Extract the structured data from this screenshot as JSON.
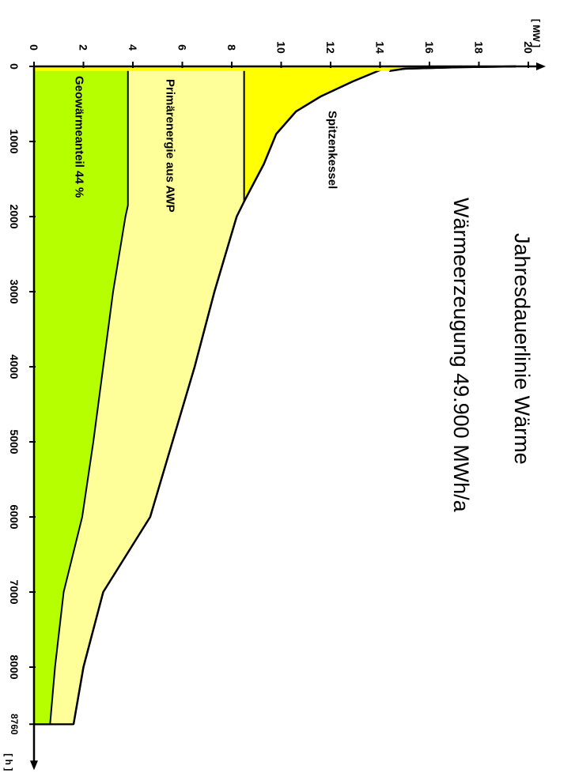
{
  "chart_data": {
    "type": "area",
    "title": "Jahresdauerlinie Wärme",
    "subtitle": "Wärmeerzeugung  49.900 MWh/a",
    "x_unit": "[ h ]",
    "y_unit": "[ MW ]",
    "xlim": [
      0,
      8760
    ],
    "ylim": [
      0,
      20
    ],
    "x_ticks": [
      "0",
      "1000",
      "2000",
      "3000",
      "4000",
      "5000",
      "6000",
      "7000",
      "8000",
      "8760"
    ],
    "x_tick_values": [
      0,
      1000,
      2000,
      3000,
      4000,
      5000,
      6000,
      7000,
      8000,
      8760
    ],
    "y_ticks": [
      "0",
      "2",
      "4",
      "6",
      "8",
      "10",
      "12",
      "14",
      "16",
      "18",
      "20"
    ],
    "y_tick_values": [
      0,
      2,
      4,
      6,
      8,
      10,
      12,
      14,
      16,
      18,
      20
    ],
    "grid": false,
    "series": [
      {
        "name": "Geowärmeanteil  44 %",
        "color": "#b5ff00",
        "points": [
          [
            0,
            3.8
          ],
          [
            1850,
            3.8
          ],
          [
            2000,
            3.7
          ],
          [
            3000,
            3.2
          ],
          [
            4000,
            2.8
          ],
          [
            5000,
            2.4
          ],
          [
            6000,
            1.95
          ],
          [
            7000,
            1.2
          ],
          [
            8000,
            0.85
          ],
          [
            8760,
            0.65
          ]
        ]
      },
      {
        "name": "Primärenergie aus  AWP",
        "color": "#ffff99",
        "points": [
          [
            0,
            8.5
          ],
          [
            1800,
            8.5
          ],
          [
            2000,
            8.2
          ],
          [
            3000,
            7.3
          ],
          [
            4000,
            6.5
          ],
          [
            5000,
            5.6
          ],
          [
            6000,
            4.7
          ],
          [
            7000,
            2.8
          ],
          [
            8000,
            2.0
          ],
          [
            8760,
            1.6
          ]
        ]
      },
      {
        "name": "Spitzenkessel",
        "color": "#ffff00",
        "points": [
          [
            0,
            14.4
          ],
          [
            50,
            14.0
          ],
          [
            200,
            12.9
          ],
          [
            400,
            11.6
          ],
          [
            600,
            10.6
          ],
          [
            900,
            9.8
          ],
          [
            1300,
            9.3
          ],
          [
            1800,
            8.5
          ],
          [
            2000,
            8.2
          ],
          [
            3000,
            7.3
          ],
          [
            4000,
            6.5
          ],
          [
            5000,
            5.6
          ],
          [
            6000,
            4.7
          ],
          [
            7000,
            2.8
          ],
          [
            8000,
            2.0
          ],
          [
            8760,
            1.6
          ]
        ]
      }
    ],
    "peak": [
      [
        0,
        19.5
      ],
      [
        10,
        17.2
      ],
      [
        30,
        15.0
      ],
      [
        60,
        14.4
      ]
    ]
  }
}
